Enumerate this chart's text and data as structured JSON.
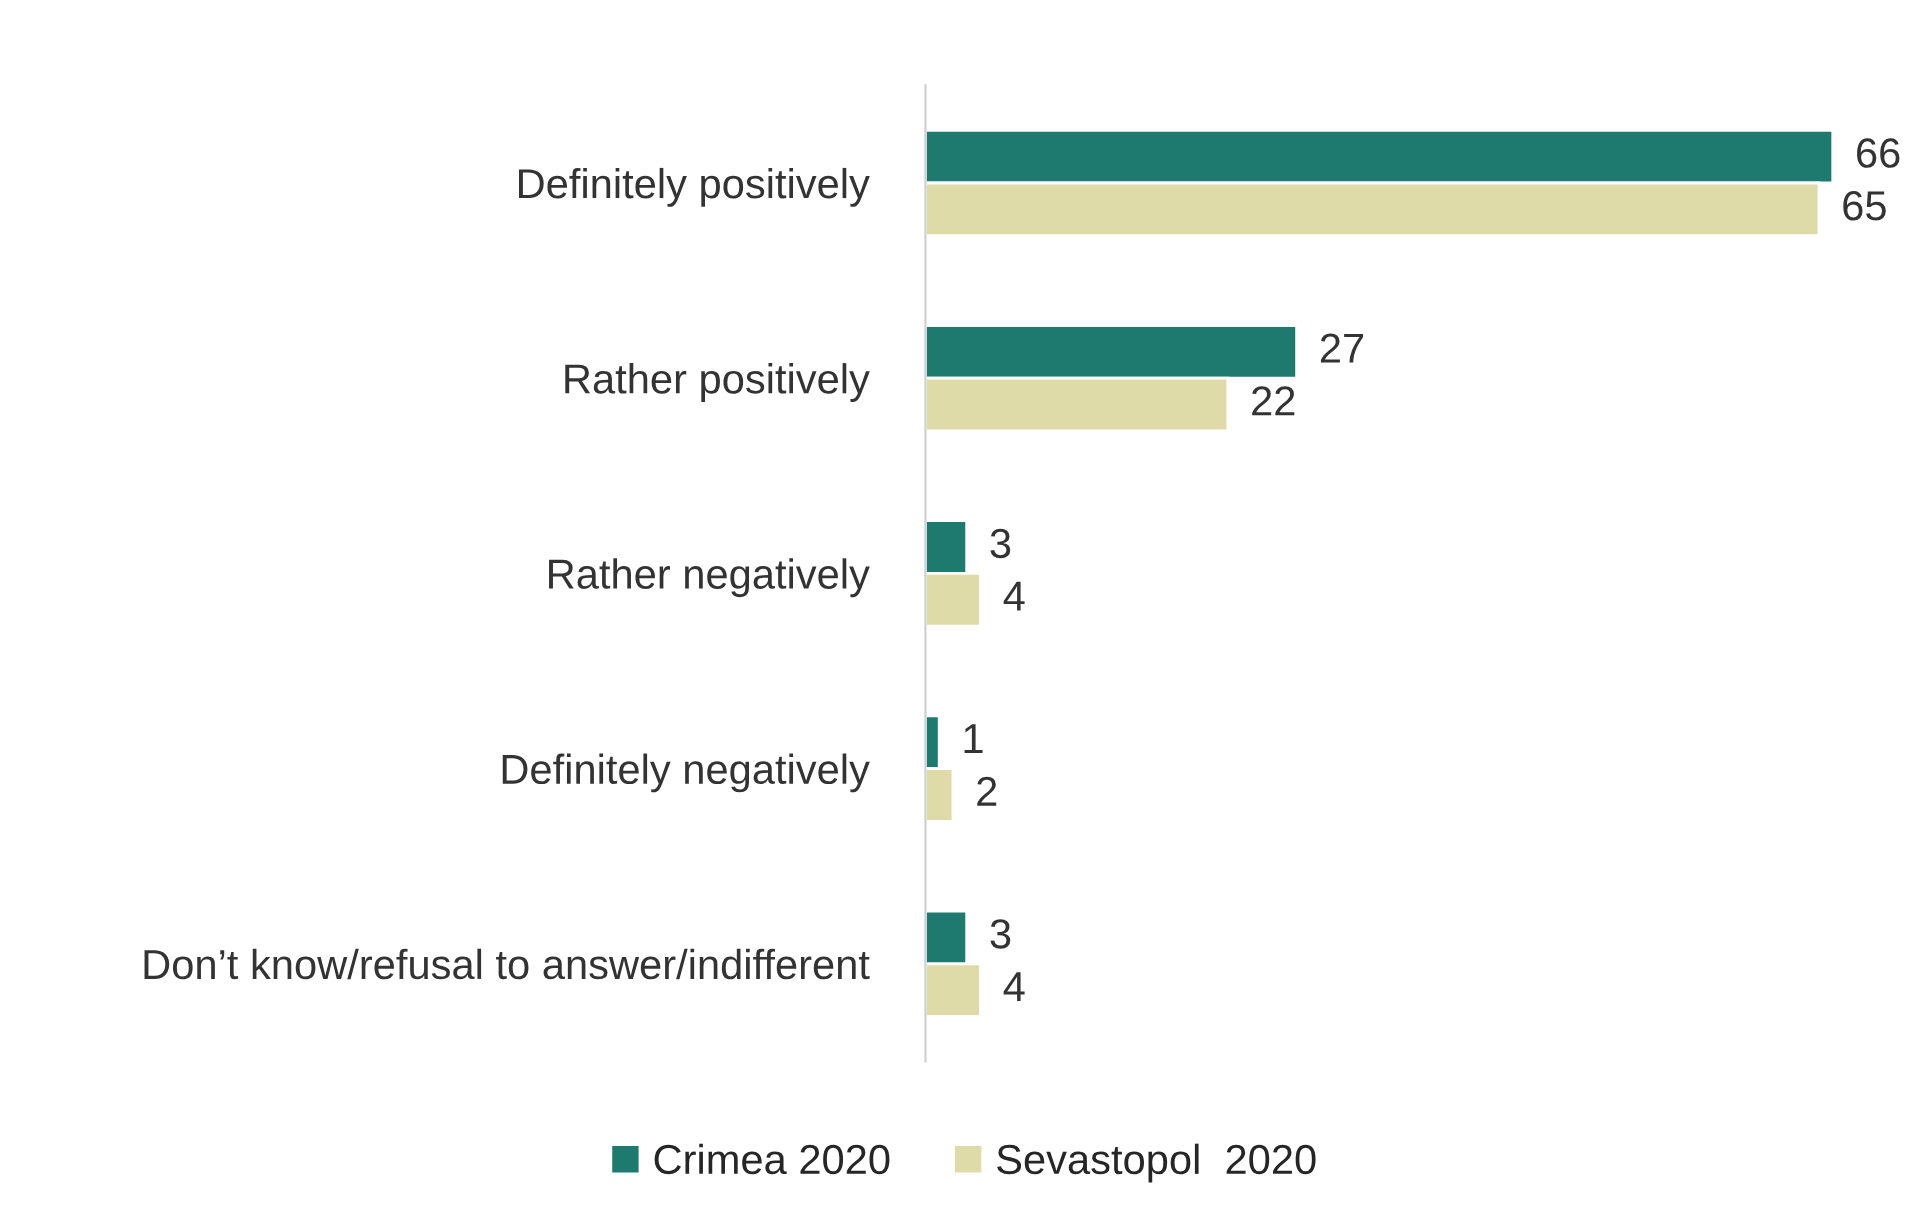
{
  "chart_data": {
    "type": "bar",
    "orientation": "horizontal",
    "categories": [
      "Definitely positively",
      "Rather positively",
      "Rather negatively",
      "Definitely negatively",
      "Don’t know/refusal to answer/indifferent"
    ],
    "series": [
      {
        "name": "Crimea 2020",
        "color": "#1e7a6f",
        "values": [
          66,
          27,
          3,
          1,
          3
        ]
      },
      {
        "name": "Sevastopol  2020",
        "color": "#dfdba8",
        "values": [
          65,
          22,
          4,
          2,
          4
        ]
      }
    ],
    "data_labels": true,
    "legend": "bottom",
    "grid": false,
    "tick_labels": "y"
  }
}
